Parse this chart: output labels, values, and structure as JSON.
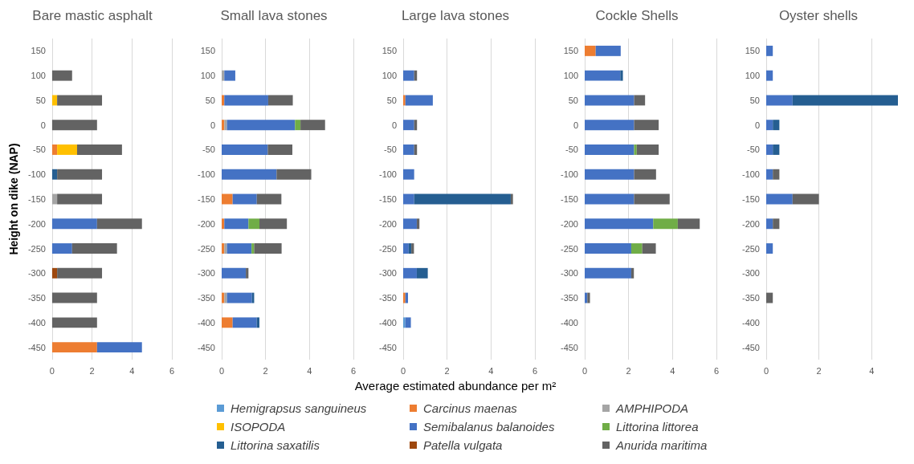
{
  "chart_data": [
    {
      "type": "bar",
      "orientation": "horizontal",
      "stacked": true,
      "title": "Bare mastic asphalt",
      "ylabel": "Height on dike (NAP)",
      "legend": "bottom",
      "grid": "x",
      "xlim": [
        0,
        6
      ],
      "xticks": [
        0,
        2,
        4,
        6
      ],
      "categories": [
        "150",
        "100",
        "50",
        "0",
        "-50",
        "-100",
        "-150",
        "-200",
        "-250",
        "-300",
        "-350",
        "-400",
        "-450"
      ],
      "series": [
        {
          "name": "Hemigrapsus sanguineus",
          "color": "#5b9bd5",
          "values": [
            null,
            null,
            null,
            null,
            null,
            null,
            null,
            null,
            null,
            null,
            null,
            null,
            null
          ]
        },
        {
          "name": "Carcinus maenas",
          "color": "#ed7d31",
          "values": [
            null,
            null,
            null,
            null,
            0.25,
            null,
            null,
            null,
            null,
            null,
            null,
            null,
            2.25
          ]
        },
        {
          "name": "AMPHIPODA",
          "color": "#a5a5a5",
          "values": [
            null,
            null,
            null,
            null,
            null,
            null,
            0.25,
            null,
            null,
            null,
            null,
            null,
            null
          ]
        },
        {
          "name": "ISOPODA",
          "color": "#ffc000",
          "values": [
            null,
            null,
            0.25,
            null,
            1,
            null,
            null,
            null,
            null,
            null,
            null,
            null,
            null
          ]
        },
        {
          "name": "Semibalanus balanoides",
          "color": "#4472c4",
          "values": [
            null,
            null,
            null,
            null,
            null,
            null,
            null,
            2.25,
            1,
            null,
            null,
            null,
            2.25
          ]
        },
        {
          "name": "Littorina littorea",
          "color": "#70ad47",
          "values": [
            null,
            null,
            null,
            null,
            null,
            null,
            null,
            null,
            null,
            null,
            null,
            null,
            null
          ]
        },
        {
          "name": "Littorina saxatilis",
          "color": "#255e91",
          "values": [
            null,
            null,
            null,
            null,
            null,
            0.25,
            null,
            null,
            null,
            null,
            null,
            null,
            null
          ]
        },
        {
          "name": "Patella vulgata",
          "color": "#9e480e",
          "values": [
            null,
            null,
            null,
            null,
            null,
            null,
            null,
            null,
            null,
            0.25,
            null,
            null,
            null
          ]
        },
        {
          "name": "Anurida maritima",
          "color": "#636363",
          "values": [
            null,
            1,
            2.25,
            2.25,
            2.25,
            2.25,
            2.25,
            2.25,
            2.25,
            2.25,
            2.25,
            2.25,
            null
          ]
        }
      ]
    },
    {
      "type": "bar",
      "orientation": "horizontal",
      "stacked": true,
      "title": "Small lava stones",
      "grid": "x",
      "xlim": [
        0,
        6
      ],
      "xticks": [
        0,
        2,
        4,
        6
      ],
      "categories": [
        "150",
        "100",
        "50",
        "0",
        "-50",
        "-100",
        "-150",
        "-200",
        "-250",
        "-300",
        "-350",
        "-400",
        "-450"
      ],
      "series": [
        {
          "color": "#5b9bd5",
          "values": [
            null,
            null,
            null,
            null,
            null,
            null,
            null,
            null,
            null,
            null,
            null,
            null,
            null
          ]
        },
        {
          "color": "#ed7d31",
          "values": [
            null,
            null,
            0.12,
            0.12,
            null,
            null,
            0.5,
            0.12,
            0.12,
            null,
            0.12,
            0.5,
            null
          ]
        },
        {
          "color": "#a5a5a5",
          "values": [
            null,
            0.12,
            null,
            0.12,
            null,
            null,
            null,
            null,
            0.12,
            null,
            0.12,
            null,
            null
          ]
        },
        {
          "color": "#ffc000",
          "values": [
            null,
            null,
            null,
            null,
            null,
            null,
            null,
            null,
            null,
            null,
            null,
            null,
            null
          ]
        },
        {
          "color": "#4472c4",
          "values": [
            null,
            0.5,
            2,
            3.1,
            2.1,
            2.5,
            1.1,
            1.1,
            1.12,
            1.1,
            1.14,
            1.1,
            null
          ]
        },
        {
          "color": "#70ad47",
          "values": [
            null,
            null,
            null,
            0.25,
            null,
            null,
            null,
            0.5,
            0.12,
            null,
            null,
            null,
            null
          ]
        },
        {
          "color": "#255e91",
          "values": [
            null,
            null,
            null,
            null,
            null,
            null,
            null,
            null,
            null,
            null,
            0.1,
            0.12,
            null
          ]
        },
        {
          "color": "#9e480e",
          "values": [
            null,
            null,
            null,
            null,
            null,
            null,
            null,
            null,
            null,
            null,
            null,
            null,
            null
          ]
        },
        {
          "color": "#636363",
          "values": [
            null,
            null,
            1.12,
            1.12,
            1.12,
            1.58,
            1.12,
            1.25,
            1.25,
            0.12,
            null,
            null,
            null
          ]
        }
      ]
    },
    {
      "type": "bar",
      "orientation": "horizontal",
      "stacked": true,
      "title": "Large lava stones",
      "xlabel": "Average estimated abundance per m²",
      "grid": "x",
      "xlim": [
        0,
        6
      ],
      "xticks": [
        0,
        2,
        4,
        6
      ],
      "categories": [
        "150",
        "100",
        "50",
        "0",
        "-50",
        "-100",
        "-150",
        "-200",
        "-250",
        "-300",
        "-350",
        "-400",
        "-450"
      ],
      "series": [
        {
          "color": "#5b9bd5",
          "values": [
            null,
            null,
            null,
            null,
            null,
            null,
            null,
            null,
            null,
            null,
            null,
            0.1,
            null
          ]
        },
        {
          "color": "#ed7d31",
          "values": [
            null,
            null,
            0.1,
            null,
            null,
            null,
            null,
            null,
            null,
            null,
            0.1,
            null,
            null
          ]
        },
        {
          "color": "#a5a5a5",
          "values": [
            null,
            null,
            null,
            null,
            null,
            null,
            null,
            null,
            null,
            null,
            null,
            null,
            null
          ]
        },
        {
          "color": "#ffc000",
          "values": [
            null,
            null,
            null,
            null,
            null,
            null,
            null,
            null,
            null,
            null,
            null,
            null,
            null
          ]
        },
        {
          "color": "#4472c4",
          "values": [
            null,
            0.5,
            1.25,
            0.5,
            0.5,
            0.5,
            0.5,
            0.62,
            0.25,
            0.62,
            0.12,
            0.25,
            null
          ]
        },
        {
          "color": "#70ad47",
          "values": [
            null,
            null,
            null,
            null,
            null,
            null,
            null,
            null,
            null,
            null,
            null,
            null,
            null
          ]
        },
        {
          "color": "#255e91",
          "values": [
            null,
            null,
            null,
            null,
            null,
            null,
            4.4,
            null,
            0.12,
            0.5,
            null,
            null,
            null
          ]
        },
        {
          "color": "#9e480e",
          "values": [
            null,
            null,
            null,
            null,
            null,
            null,
            null,
            null,
            null,
            null,
            null,
            null,
            null
          ]
        },
        {
          "color": "#636363",
          "values": [
            null,
            0.13,
            null,
            0.13,
            0.13,
            null,
            0.1,
            0.12,
            0.12,
            null,
            null,
            null,
            null
          ]
        }
      ]
    },
    {
      "type": "bar",
      "orientation": "horizontal",
      "stacked": true,
      "title": "Cockle Shells",
      "grid": "x",
      "xlim": [
        0,
        6
      ],
      "xticks": [
        0,
        2,
        4,
        6
      ],
      "categories": [
        "150",
        "100",
        "50",
        "0",
        "-50",
        "-100",
        "-150",
        "-200",
        "-250",
        "-300",
        "-350",
        "-400",
        "-450"
      ],
      "series": [
        {
          "color": "#5b9bd5",
          "values": [
            null,
            null,
            null,
            null,
            null,
            null,
            null,
            null,
            null,
            null,
            null,
            null,
            null
          ]
        },
        {
          "color": "#ed7d31",
          "values": [
            0.5,
            null,
            null,
            null,
            null,
            null,
            null,
            null,
            null,
            null,
            null,
            null,
            null
          ]
        },
        {
          "color": "#a5a5a5",
          "values": [
            null,
            null,
            null,
            null,
            null,
            null,
            null,
            null,
            null,
            null,
            null,
            null,
            null
          ]
        },
        {
          "color": "#ffc000",
          "values": [
            null,
            null,
            null,
            null,
            null,
            null,
            null,
            null,
            null,
            null,
            null,
            null,
            null
          ]
        },
        {
          "color": "#4472c4",
          "values": [
            1.14,
            1.62,
            2.25,
            2.25,
            2.25,
            2.25,
            2.25,
            3.12,
            2.12,
            2.12,
            0.12,
            null,
            null
          ]
        },
        {
          "color": "#70ad47",
          "values": [
            null,
            null,
            null,
            null,
            0.12,
            null,
            null,
            1.12,
            0.5,
            null,
            null,
            null,
            null
          ]
        },
        {
          "color": "#255e91",
          "values": [
            null,
            0.12,
            null,
            null,
            null,
            null,
            null,
            null,
            null,
            null,
            null,
            null,
            null
          ]
        },
        {
          "color": "#9e480e",
          "values": [
            null,
            null,
            null,
            null,
            null,
            null,
            null,
            null,
            null,
            null,
            null,
            null,
            null
          ]
        },
        {
          "color": "#636363",
          "values": [
            null,
            null,
            0.5,
            1.12,
            1,
            1,
            1.62,
            1,
            0.62,
            0.12,
            0.12,
            null,
            null
          ]
        }
      ]
    },
    {
      "type": "bar",
      "orientation": "horizontal",
      "stacked": true,
      "title": "Oyster shells",
      "grid": "x",
      "xlim": [
        0,
        5
      ],
      "xticks": [
        0,
        2,
        4
      ],
      "categories": [
        "150",
        "100",
        "50",
        "0",
        "-50",
        "-100",
        "-150",
        "-200",
        "-250",
        "-300",
        "-350",
        "-400",
        "-450"
      ],
      "series": [
        {
          "color": "#5b9bd5",
          "values": [
            null,
            null,
            null,
            null,
            null,
            null,
            null,
            null,
            null,
            null,
            null,
            null,
            null
          ]
        },
        {
          "color": "#ed7d31",
          "values": [
            null,
            null,
            null,
            null,
            null,
            null,
            null,
            null,
            null,
            null,
            null,
            null,
            null
          ]
        },
        {
          "color": "#a5a5a5",
          "values": [
            null,
            null,
            null,
            null,
            null,
            null,
            null,
            null,
            null,
            null,
            null,
            null,
            null
          ]
        },
        {
          "color": "#ffc000",
          "values": [
            null,
            null,
            null,
            null,
            null,
            null,
            null,
            null,
            null,
            null,
            null,
            null,
            null
          ]
        },
        {
          "color": "#4472c4",
          "values": [
            0.25,
            0.25,
            1,
            0.25,
            0.25,
            0.25,
            1,
            0.25,
            0.25,
            null,
            null,
            null,
            null
          ]
        },
        {
          "color": "#70ad47",
          "values": [
            null,
            null,
            null,
            null,
            null,
            null,
            null,
            null,
            null,
            null,
            null,
            null,
            null
          ]
        },
        {
          "color": "#255e91",
          "values": [
            null,
            null,
            4,
            0.25,
            0.25,
            null,
            null,
            null,
            null,
            null,
            null,
            null,
            null
          ]
        },
        {
          "color": "#9e480e",
          "values": [
            null,
            null,
            null,
            null,
            null,
            null,
            null,
            null,
            null,
            null,
            null,
            null,
            null
          ]
        },
        {
          "color": "#636363",
          "values": [
            null,
            null,
            null,
            null,
            null,
            0.25,
            1,
            0.25,
            null,
            null,
            0.25,
            null,
            null
          ]
        }
      ]
    }
  ]
}
